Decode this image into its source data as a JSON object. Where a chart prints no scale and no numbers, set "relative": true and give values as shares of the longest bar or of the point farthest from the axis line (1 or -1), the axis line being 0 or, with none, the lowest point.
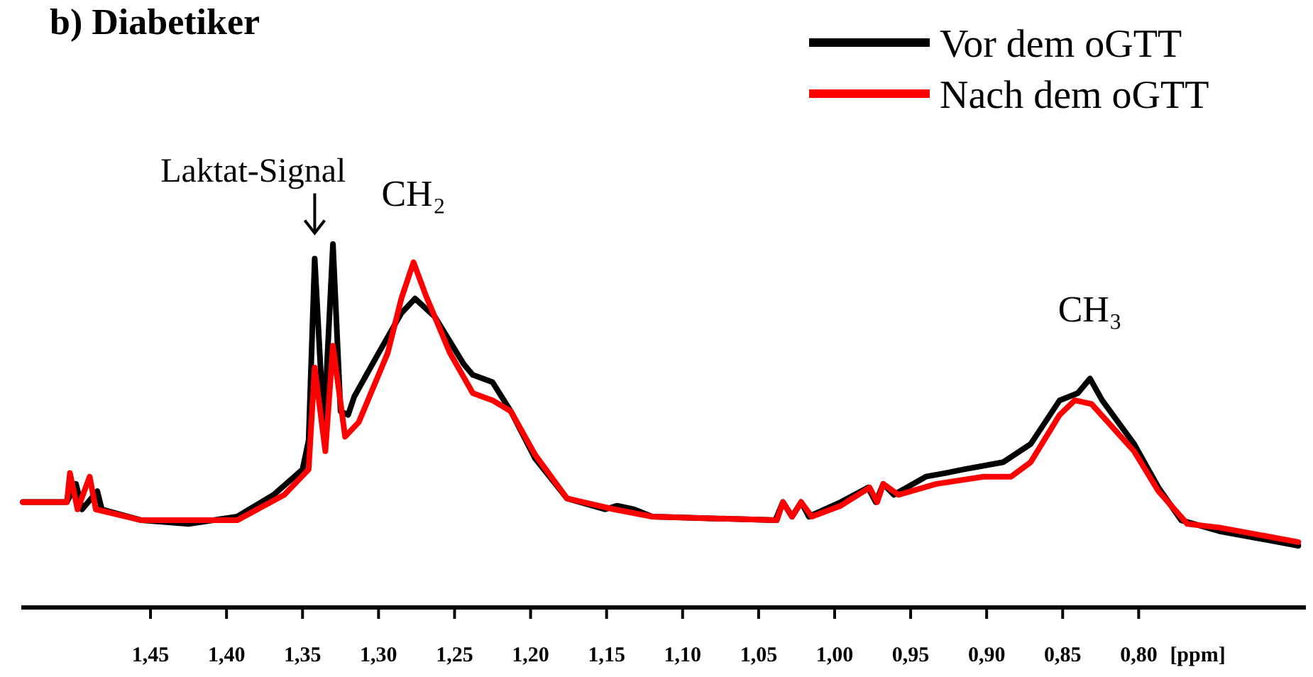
{
  "chart_data": {
    "type": "line",
    "title": "b) Diabetiker",
    "xlabel": "[ppm]",
    "relative": true,
    "legend": "top right",
    "xlim": [
      1.535,
      0.69
    ],
    "xticks": [
      {
        "value": 1.45,
        "label": "1,45"
      },
      {
        "value": 1.4,
        "label": "1,40"
      },
      {
        "value": 1.35,
        "label": "1,35"
      },
      {
        "value": 1.3,
        "label": "1,30"
      },
      {
        "value": 1.25,
        "label": "1,25"
      },
      {
        "value": 1.2,
        "label": "1,20"
      },
      {
        "value": 1.15,
        "label": "1,15"
      },
      {
        "value": 1.1,
        "label": "1,10"
      },
      {
        "value": 1.05,
        "label": "1,05"
      },
      {
        "value": 1.0,
        "label": "1,00"
      },
      {
        "value": 0.95,
        "label": "0,95"
      },
      {
        "value": 0.9,
        "label": "0,90"
      },
      {
        "value": 0.85,
        "label": "0,85"
      },
      {
        "value": 0.8,
        "label": "0,80"
      }
    ],
    "annotations": [
      {
        "text": "Laktat-Signal",
        "x": 1.342,
        "y": 0.96
      },
      {
        "text": "CH₂",
        "x": 1.277,
        "y": 0.95
      },
      {
        "text": "CH₃",
        "x": 0.832,
        "y": 0.63
      }
    ],
    "series": [
      {
        "name": "Vor dem oGTT",
        "color": "#000000",
        "x": [
          1.534,
          1.505,
          1.499,
          1.495,
          1.485,
          1.482,
          1.456,
          1.425,
          1.393,
          1.369,
          1.35,
          1.346,
          1.342,
          1.336,
          1.33,
          1.325,
          1.32,
          1.316,
          1.3,
          1.285,
          1.276,
          1.263,
          1.244,
          1.238,
          1.225,
          1.213,
          1.197,
          1.176,
          1.151,
          1.143,
          1.132,
          1.12,
          1.039,
          1.034,
          1.028,
          1.022,
          1.017,
          0.996,
          0.978,
          0.973,
          0.968,
          0.961,
          0.94,
          0.927,
          0.915,
          0.889,
          0.871,
          0.852,
          0.84,
          0.832,
          0.824,
          0.803,
          0.787,
          0.772,
          0.747,
          0.695
        ],
        "values": [
          0.29,
          0.29,
          0.34,
          0.27,
          0.32,
          0.27,
          0.24,
          0.23,
          0.25,
          0.31,
          0.38,
          0.46,
          0.96,
          0.49,
          1.0,
          0.54,
          0.53,
          0.58,
          0.7,
          0.81,
          0.85,
          0.8,
          0.67,
          0.64,
          0.62,
          0.54,
          0.41,
          0.3,
          0.27,
          0.28,
          0.27,
          0.25,
          0.24,
          0.29,
          0.25,
          0.29,
          0.25,
          0.29,
          0.33,
          0.29,
          0.34,
          0.31,
          0.36,
          0.37,
          0.38,
          0.4,
          0.45,
          0.57,
          0.59,
          0.63,
          0.57,
          0.45,
          0.33,
          0.24,
          0.21,
          0.17
        ]
      },
      {
        "name": "Nach dem oGTT",
        "color": "#ff0000",
        "x": [
          1.534,
          1.505,
          1.503,
          1.498,
          1.49,
          1.486,
          1.456,
          1.393,
          1.362,
          1.346,
          1.342,
          1.335,
          1.33,
          1.322,
          1.313,
          1.294,
          1.285,
          1.277,
          1.269,
          1.253,
          1.238,
          1.225,
          1.213,
          1.197,
          1.176,
          1.145,
          1.12,
          1.038,
          1.034,
          1.028,
          1.022,
          1.015,
          0.996,
          0.977,
          0.972,
          0.968,
          0.958,
          0.933,
          0.902,
          0.884,
          0.871,
          0.852,
          0.842,
          0.831,
          0.803,
          0.787,
          0.768,
          0.747,
          0.695
        ],
        "values": [
          0.29,
          0.29,
          0.37,
          0.27,
          0.36,
          0.27,
          0.24,
          0.24,
          0.31,
          0.38,
          0.66,
          0.43,
          0.72,
          0.47,
          0.51,
          0.7,
          0.85,
          0.95,
          0.86,
          0.7,
          0.59,
          0.57,
          0.54,
          0.42,
          0.3,
          0.27,
          0.25,
          0.24,
          0.29,
          0.25,
          0.29,
          0.25,
          0.28,
          0.33,
          0.29,
          0.34,
          0.31,
          0.34,
          0.36,
          0.36,
          0.4,
          0.53,
          0.57,
          0.56,
          0.43,
          0.32,
          0.23,
          0.22,
          0.18
        ]
      }
    ]
  }
}
